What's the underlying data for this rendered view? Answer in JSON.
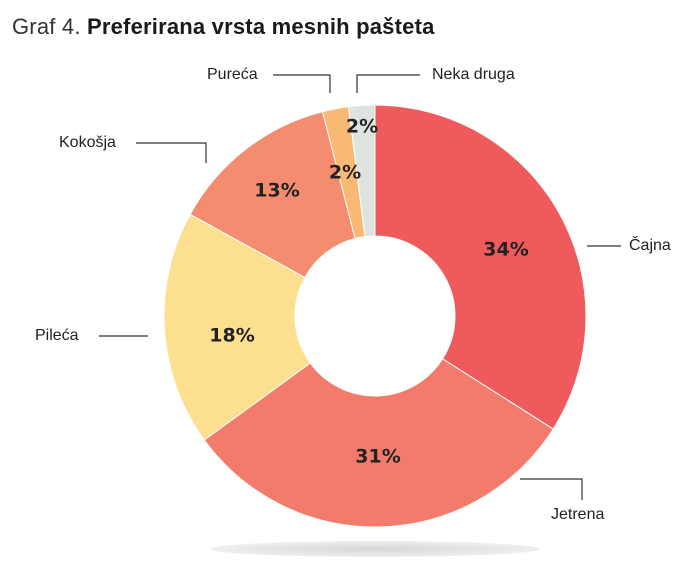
{
  "title": {
    "prefix": "Graf 4.",
    "main": "Preferirana vrsta mesnih pašteta"
  },
  "chart_data": {
    "type": "pie",
    "donut": true,
    "slices": [
      {
        "label": "Čajna",
        "value": 34,
        "display": "34%",
        "color": "#ef5b5c"
      },
      {
        "label": "Jetrena",
        "value": 31,
        "display": "31%",
        "color": "#f27b6b"
      },
      {
        "label": "Pileća",
        "value": 18,
        "display": "18%",
        "color": "#fde08f"
      },
      {
        "label": "Kokošja",
        "value": 13,
        "display": "13%",
        "color": "#f48c70"
      },
      {
        "label": "Pureća",
        "value": 2,
        "display": "2%",
        "color": "#f9b974"
      },
      {
        "label": "Neka druga",
        "value": 2,
        "display": "2%",
        "color": "#dde4df"
      }
    ]
  }
}
